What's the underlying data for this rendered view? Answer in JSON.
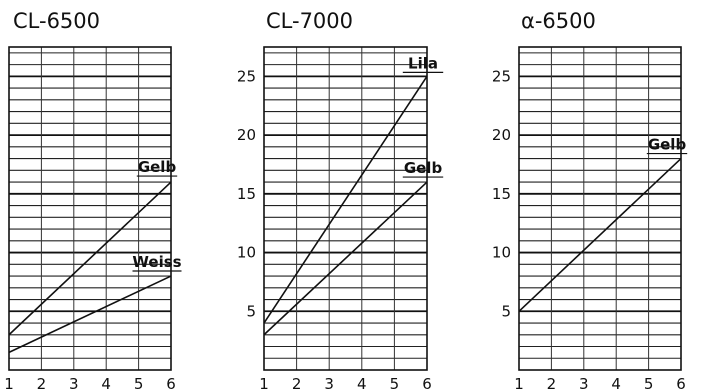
{
  "chart_data": [
    {
      "type": "line",
      "title": "CL-6500",
      "x": [
        1,
        2,
        3,
        4,
        5,
        6
      ],
      "yticks": [
        5,
        10,
        15,
        20,
        25
      ],
      "ylim": [
        0,
        27.5
      ],
      "xlim": [
        1,
        6
      ],
      "grid": true,
      "series": [
        {
          "name": "Gelb",
          "x": [
            1,
            6
          ],
          "y": [
            3,
            16
          ]
        },
        {
          "name": "Weiss",
          "x": [
            1,
            6
          ],
          "y": [
            1.5,
            8
          ]
        }
      ]
    },
    {
      "type": "line",
      "title": "CL-7000",
      "x": [
        1,
        2,
        3,
        4,
        5,
        6
      ],
      "yticks": [
        5,
        10,
        15,
        20,
        25
      ],
      "ylim": [
        0,
        27.5
      ],
      "xlim": [
        1,
        6
      ],
      "grid": true,
      "series": [
        {
          "name": "Lila",
          "x": [
            1,
            6
          ],
          "y": [
            4,
            25
          ]
        },
        {
          "name": "Gelb",
          "x": [
            1,
            6
          ],
          "y": [
            3,
            16
          ]
        }
      ]
    },
    {
      "type": "line",
      "title": "α-6500",
      "x": [
        1,
        2,
        3,
        4,
        5,
        6
      ],
      "yticks": [
        5,
        10,
        15,
        20,
        25
      ],
      "ylim": [
        0,
        27.5
      ],
      "xlim": [
        1,
        6
      ],
      "grid": true,
      "series": [
        {
          "name": "Gelb",
          "x": [
            1,
            6
          ],
          "y": [
            5,
            18
          ]
        }
      ]
    }
  ]
}
